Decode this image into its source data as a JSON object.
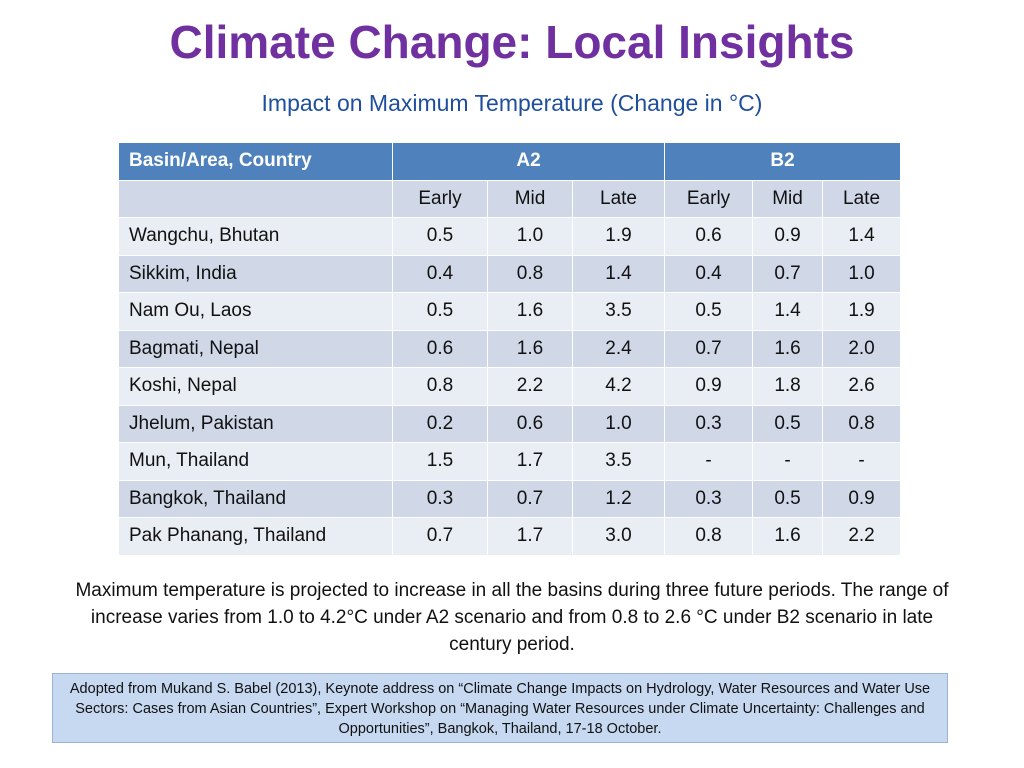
{
  "slide": {
    "title": "Climate Change: Local Insights",
    "subtitle": "Impact on Maximum Temperature (Change in °C)"
  },
  "table": {
    "header_row1": {
      "col0": "Basin/Area, Country",
      "group_a2": "A2",
      "group_b2": "B2"
    },
    "header_row2": [
      "",
      "Early",
      "Mid",
      "Late",
      "Early",
      "Mid",
      "Late"
    ],
    "rows": [
      [
        "Wangchu, Bhutan",
        "0.5",
        "1.0",
        "1.9",
        "0.6",
        "0.9",
        "1.4"
      ],
      [
        "Sikkim, India",
        "0.4",
        "0.8",
        "1.4",
        "0.4",
        "0.7",
        "1.0"
      ],
      [
        "Nam Ou, Laos",
        "0.5",
        "1.6",
        "3.5",
        "0.5",
        "1.4",
        "1.9"
      ],
      [
        "Bagmati, Nepal",
        "0.6",
        "1.6",
        "2.4",
        "0.7",
        "1.6",
        "2.0"
      ],
      [
        "Koshi, Nepal",
        "0.8",
        "2.2",
        "4.2",
        "0.9",
        "1.8",
        "2.6"
      ],
      [
        "Jhelum, Pakistan",
        "0.2",
        "0.6",
        "1.0",
        "0.3",
        "0.5",
        "0.8"
      ],
      [
        "Mun, Thailand",
        "1.5",
        "1.7",
        "3.5",
        "-",
        "-",
        "-"
      ],
      [
        "Bangkok, Thailand",
        "0.3",
        "0.7",
        "1.2",
        "0.3",
        "0.5",
        "0.9"
      ],
      [
        "Pak Phanang, Thailand",
        "0.7",
        "1.7",
        "3.0",
        "0.8",
        "1.6",
        "2.2"
      ]
    ]
  },
  "summary": "Maximum temperature is projected to increase in all the basins during three future periods. The range of increase varies from 1.0 to 4.2°C under A2 scenario and from 0.8 to 2.6 °C under B2 scenario in late century period.",
  "source_note": "Adopted from Mukand S. Babel (2013), Keynote address on “Climate Change Impacts on Hydrology, Water Resources and Water Use Sectors: Cases from Asian Countries”, Expert Workshop on “Managing Water Resources under Climate Uncertainty: Challenges and Opportunities”, Bangkok, Thailand, 17-18 October.",
  "colors": {
    "title": "#7030A0",
    "subtitle": "#1F4E9E",
    "header_fill": "#4F81BD",
    "row_odd": "#D0D8E8",
    "row_even": "#E9EDF4",
    "source_fill": "#C6D9F1"
  }
}
